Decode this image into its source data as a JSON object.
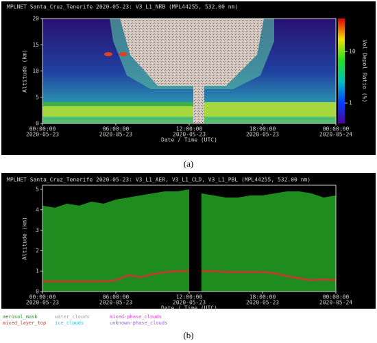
{
  "chart_data": [
    {
      "type": "heatmap",
      "title": "MPLNET Santa_Cruz_Tenerife 2020-05-23:  V3_L1_NRB   (MPL44255, 532.00 nm)",
      "xlabel": "Date / Time (UTC)",
      "ylabel": "Altitude (km)",
      "colorbar_label": "Vol Depol Ratio (%)",
      "caption": "(a)",
      "xlim": [
        0,
        24
      ],
      "xticks": [
        {
          "value": 0,
          "label": "00:00:00"
        },
        {
          "value": 6,
          "label": "06:00:00"
        },
        {
          "value": 12,
          "label": "12:00:00"
        },
        {
          "value": 18,
          "label": "18:00:00"
        },
        {
          "value": 24,
          "label": "00:00:00"
        }
      ],
      "xtick_sublabels": [
        "2020-05-23",
        "2020-05-23",
        "2020-05-23",
        "2020-05-23",
        "2020-05-24"
      ],
      "ylim": [
        0,
        20
      ],
      "yticks": [
        0,
        5,
        10,
        15,
        20
      ],
      "clim": [
        0.4,
        44
      ],
      "clog": true,
      "cticks": [
        1,
        10
      ]
    },
    {
      "type": "area_line",
      "title": "MPLNET Santa_Cruz_Tenerife 2020-05-23:  V3_L1_AER, V3_L1_CLD, V3_L1_PBL   (MPL44255, 532.00 nm)",
      "xlabel": "Date / Time (UTC)",
      "ylabel": "Altitude (km)",
      "caption": "(b)",
      "xlim": [
        0,
        24
      ],
      "xticks": [
        {
          "value": 0,
          "label": "00:00:00"
        },
        {
          "value": 6,
          "label": "06:00:00"
        },
        {
          "value": 12,
          "label": "12:00:00"
        },
        {
          "value": 18,
          "label": "18:00:00"
        },
        {
          "value": 24,
          "label": "00:00:00"
        }
      ],
      "xtick_sublabels": [
        "2020-05-23",
        "2020-05-23",
        "2020-05-23",
        "2020-05-23",
        "2020-05-24"
      ],
      "ylim": [
        0,
        5.2
      ],
      "yticks": [
        0,
        1,
        2,
        3,
        4,
        5
      ],
      "x": [
        0,
        1,
        2,
        3,
        4,
        5,
        6,
        7,
        8,
        9,
        10,
        11,
        12,
        12.5,
        13,
        14,
        15,
        16,
        17,
        18,
        19,
        20,
        21,
        22,
        23,
        24
      ],
      "series": [
        {
          "name": "aerosol_mask",
          "color": "#1e8c1e",
          "values": [
            4.2,
            4.1,
            4.3,
            4.2,
            4.4,
            4.3,
            4.5,
            4.6,
            4.7,
            4.8,
            4.9,
            4.9,
            5.0,
            null,
            4.8,
            4.7,
            4.6,
            4.6,
            4.7,
            4.7,
            4.8,
            4.9,
            4.9,
            4.8,
            4.6,
            4.7
          ]
        },
        {
          "name": "mixed_layer_top",
          "color": "#b8402a",
          "values": [
            0.5,
            0.5,
            0.5,
            0.5,
            0.5,
            0.5,
            0.55,
            0.8,
            0.7,
            0.85,
            0.95,
            1.0,
            1.0,
            null,
            1.0,
            1.0,
            0.95,
            0.95,
            0.95,
            0.95,
            0.9,
            0.75,
            0.65,
            0.55,
            0.6,
            0.55
          ]
        }
      ],
      "legend_extra": [
        {
          "name": "water_clouds",
          "color": "#a0a0a0"
        },
        {
          "name": "mixed-phase_clouds",
          "color": "#d040d0"
        },
        {
          "name": "ice_clouds",
          "color": "#30c0e0"
        },
        {
          "name": "unknown-phase_clouds",
          "color": "#9060e0"
        }
      ]
    }
  ]
}
